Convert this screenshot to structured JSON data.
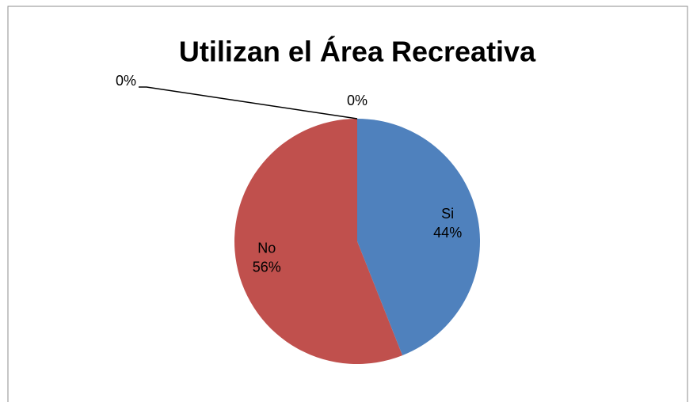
{
  "chart_data": {
    "type": "pie",
    "title": "Utilizan el Área Recreativa",
    "categories": [
      "Si",
      "No",
      null,
      null
    ],
    "values": [
      44,
      56,
      0,
      0
    ],
    "value_labels": [
      "44%",
      "56%",
      "0%",
      "0%"
    ],
    "colors": [
      "#4f81bd",
      "#c0504d",
      "#9bbb59",
      "#8064a2"
    ]
  }
}
